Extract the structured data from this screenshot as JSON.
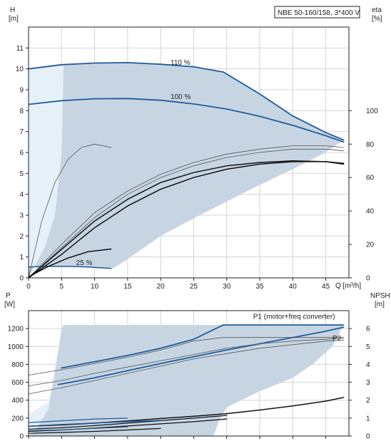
{
  "colors": {
    "region_fill": "#c7d5e3",
    "region_light": "#e6f0f9",
    "accent_curve": "#1f5b9e",
    "curve_dark": "#111111",
    "curve_gray": "#555555",
    "grid": "#d4d4d4"
  },
  "chart_data": [
    {
      "type": "line",
      "title": "NBE 50-160/158, 3*400 V",
      "ylabel_left": "H\n[m]",
      "ylabel_right": "eta\n[%]",
      "xlabel": "Q [m³/h]",
      "xlim": [
        0,
        48.5
      ],
      "ylim": [
        0,
        12
      ],
      "y2lim": [
        0,
        150
      ],
      "x_ticks": [
        0,
        5,
        10,
        15,
        20,
        25,
        30,
        35,
        40,
        45
      ],
      "y_ticks": [
        0,
        1,
        2,
        3,
        4,
        5,
        6,
        7,
        8,
        9,
        10,
        11
      ],
      "y2_ticks": [
        0,
        20,
        40,
        60,
        80,
        100
      ],
      "grid": true,
      "region_light": [
        [
          0,
          0
        ],
        [
          0,
          10.0
        ],
        [
          5.3,
          10.22
        ],
        [
          5.0,
          6.0
        ],
        [
          4.0,
          3.0
        ],
        [
          2.5,
          1.5
        ],
        [
          1.0,
          0.6
        ]
      ],
      "region_main": [
        [
          0,
          0
        ],
        [
          1.0,
          0.6
        ],
        [
          2.5,
          1.5
        ],
        [
          4.0,
          3.0
        ],
        [
          5.0,
          6.0
        ],
        [
          5.3,
          10.22
        ],
        [
          10,
          10.28
        ],
        [
          15,
          10.3
        ],
        [
          20,
          10.22
        ],
        [
          25,
          10.1
        ],
        [
          29.5,
          9.85
        ],
        [
          35,
          8.8
        ],
        [
          40,
          7.75
        ],
        [
          45,
          6.95
        ],
        [
          47.7,
          6.6
        ],
        [
          45,
          6.0
        ],
        [
          40,
          5.2
        ],
        [
          35,
          4.45
        ],
        [
          30,
          3.65
        ],
        [
          25,
          2.85
        ],
        [
          20,
          2.0
        ],
        [
          15,
          0.9
        ],
        [
          12.8,
          0.45
        ],
        [
          5,
          0.55
        ],
        [
          0,
          0.5
        ]
      ],
      "series": [
        {
          "name": "110 %",
          "axis": "left",
          "color": "accent",
          "width": 1.8,
          "x": [
            0,
            5,
            10,
            15,
            20,
            25,
            29.5,
            35,
            40,
            45,
            47.7
          ],
          "y": [
            10.0,
            10.2,
            10.28,
            10.3,
            10.22,
            10.1,
            9.85,
            8.8,
            7.75,
            6.95,
            6.6
          ]
        },
        {
          "name": "100 %",
          "axis": "left",
          "color": "accent",
          "width": 1.8,
          "x": [
            0,
            5,
            10,
            15,
            20,
            25,
            30,
            35,
            40,
            45,
            47.7
          ],
          "y": [
            8.3,
            8.48,
            8.57,
            8.58,
            8.5,
            8.32,
            8.08,
            7.73,
            7.3,
            6.8,
            6.5
          ]
        },
        {
          "name": "25 %",
          "axis": "left",
          "color": "accent",
          "width": 1.5,
          "x": [
            0,
            3,
            6,
            9,
            12.5
          ],
          "y": [
            0.52,
            0.55,
            0.55,
            0.52,
            0.45
          ]
        },
        {
          "axis": "left",
          "color": "dark",
          "width": 1.5,
          "x": [
            0,
            3,
            6,
            9,
            12.5
          ],
          "y": [
            0.05,
            0.55,
            0.95,
            1.25,
            1.38
          ]
        },
        {
          "axis": "right",
          "color": "gray",
          "width": 0.8,
          "x": [
            0,
            2,
            4,
            6,
            8,
            10,
            12.5
          ],
          "y": [
            0,
            34,
            57,
            71,
            78,
            80,
            78
          ]
        },
        {
          "axis": "right",
          "color": "gray",
          "width": 0.8,
          "x": [
            0,
            5,
            10,
            15,
            20,
            25,
            30,
            35,
            40,
            45,
            47.7
          ],
          "y": [
            0,
            20,
            39,
            52,
            62,
            69,
            74,
            77,
            79,
            79,
            78
          ]
        },
        {
          "axis": "right",
          "color": "gray",
          "width": 0.8,
          "x": [
            0,
            5,
            10,
            15,
            20,
            25,
            30,
            35,
            40,
            45,
            47.7
          ],
          "y": [
            0,
            18,
            36,
            50,
            60,
            67,
            72,
            75,
            77,
            77,
            76
          ]
        },
        {
          "axis": "right",
          "color": "dark",
          "width": 1.5,
          "x": [
            0,
            5,
            10,
            15,
            20,
            25,
            30,
            35,
            40,
            45,
            47.7
          ],
          "y": [
            0,
            17,
            34,
            47,
            57,
            63,
            67,
            69,
            70,
            69.5,
            68.5
          ]
        },
        {
          "axis": "right",
          "color": "dark",
          "width": 1.5,
          "x": [
            0,
            5,
            10,
            15,
            20,
            25,
            30,
            35,
            40,
            45,
            47.7
          ],
          "y": [
            0,
            14,
            30,
            43,
            53,
            60,
            65,
            68,
            69.5,
            69.5,
            68
          ]
        }
      ],
      "annotations": [
        {
          "text": "110 %",
          "x": 21.5,
          "y": 10.2
        },
        {
          "text": "100 %",
          "x": 21.5,
          "y": 8.55
        },
        {
          "text": "25 %",
          "x": 7.2,
          "y": 0.62
        }
      ]
    },
    {
      "type": "line",
      "ylabel_left": "P\n[W]",
      "ylabel_right": "NPSH\n[m]",
      "xlim": [
        0,
        48.5
      ],
      "ylim": [
        0,
        1400
      ],
      "y2lim": [
        0,
        7
      ],
      "y_ticks": [
        0,
        200,
        400,
        600,
        800,
        1000,
        1200
      ],
      "y2_ticks": [
        0,
        1,
        2,
        3,
        4,
        5,
        6
      ],
      "grid": true,
      "region_light": [
        [
          0,
          0
        ],
        [
          0,
          250
        ],
        [
          3,
          380
        ],
        [
          5,
          1190
        ],
        [
          4,
          700
        ],
        [
          3,
          300
        ],
        [
          1,
          60
        ]
      ],
      "region_main": [
        [
          0,
          0
        ],
        [
          1,
          60
        ],
        [
          3,
          300
        ],
        [
          4,
          700
        ],
        [
          5,
          1190
        ],
        [
          5.3,
          1240
        ],
        [
          29.5,
          1240
        ],
        [
          47.7,
          1240
        ],
        [
          46,
          1000
        ],
        [
          43,
          800
        ],
        [
          40,
          650
        ],
        [
          35,
          500
        ],
        [
          30,
          320
        ],
        [
          29,
          200
        ],
        [
          28,
          0
        ]
      ],
      "series": [
        {
          "name": "P1 (motor+freq converter)",
          "axis": "left",
          "color": "accent",
          "width": 1.8,
          "x": [
            5,
            10,
            15,
            20,
            25,
            29.5,
            35,
            40,
            45,
            47.7
          ],
          "y": [
            760,
            830,
            900,
            980,
            1080,
            1240,
            1240,
            1240,
            1240,
            1240
          ]
        },
        {
          "name": "P2",
          "axis": "left",
          "color": "accent",
          "width": 1.8,
          "x": [
            4.5,
            10,
            15,
            20,
            25,
            30,
            35,
            40,
            45,
            47.7
          ],
          "y": [
            575,
            650,
            730,
            810,
            885,
            960,
            1030,
            1100,
            1170,
            1215
          ]
        },
        {
          "axis": "left",
          "color": "gray",
          "width": 0.8,
          "x": [
            0,
            5,
            10,
            15,
            20,
            25,
            29.5,
            35,
            40,
            47.7
          ],
          "y": [
            680,
            740,
            810,
            880,
            960,
            1060,
            1100,
            1100,
            1100,
            1100
          ]
        },
        {
          "axis": "left",
          "color": "gray",
          "width": 0.8,
          "x": [
            0,
            5,
            10,
            15,
            20,
            25,
            30,
            35,
            40,
            45,
            47.7
          ],
          "y": [
            560,
            620,
            700,
            770,
            840,
            910,
            980,
            1030,
            1060,
            1080,
            1090
          ]
        },
        {
          "axis": "left",
          "color": "gray",
          "width": 0.8,
          "x": [
            0,
            5,
            10,
            15,
            20,
            25,
            30,
            35,
            40,
            45,
            47.7
          ],
          "y": [
            470,
            540,
            620,
            700,
            780,
            860,
            920,
            980,
            1020,
            1060,
            1070
          ]
        },
        {
          "axis": "right",
          "color": "dark",
          "width": 1.5,
          "x": [
            0,
            5,
            10,
            15,
            20,
            25,
            30,
            35,
            40,
            45,
            47.7
          ],
          "y": [
            0.55,
            0.62,
            0.72,
            0.84,
            0.98,
            1.1,
            1.25,
            1.45,
            1.68,
            1.95,
            2.15
          ]
        },
        {
          "axis": "right",
          "color": "dark",
          "width": 1.2,
          "x": [
            0,
            5,
            10,
            15,
            20,
            25,
            30
          ],
          "y": [
            0.38,
            0.46,
            0.58,
            0.72,
            0.86,
            1.0,
            1.15
          ]
        },
        {
          "axis": "right",
          "color": "dark",
          "width": 1.2,
          "x": [
            0,
            5,
            10,
            15,
            20,
            25,
            30
          ],
          "y": [
            0.26,
            0.34,
            0.44,
            0.56,
            0.68,
            0.8,
            0.95
          ]
        },
        {
          "axis": "right",
          "color": "dark",
          "width": 1.2,
          "x": [
            0,
            5,
            10,
            15,
            20
          ],
          "y": [
            0.15,
            0.2,
            0.26,
            0.34,
            0.42
          ]
        },
        {
          "axis": "left",
          "color": "accent",
          "width": 1.2,
          "x": [
            0,
            5,
            10,
            15
          ],
          "y": [
            150,
            170,
            190,
            200
          ]
        },
        {
          "axis": "left",
          "color": "accent",
          "width": 1.2,
          "x": [
            0,
            5,
            10,
            15,
            20
          ],
          "y": [
            110,
            130,
            145,
            160,
            175
          ]
        },
        {
          "axis": "left",
          "color": "accent",
          "width": 1.0,
          "x": [
            0,
            5,
            10,
            15
          ],
          "y": [
            60,
            70,
            85,
            100
          ]
        }
      ],
      "annotations": [
        {
          "text": "P1 (motor+freq converter)",
          "x": 34,
          "y": 1310
        },
        {
          "text": "P2",
          "x": 46,
          "y": 1065
        }
      ]
    }
  ],
  "top_chart": {
    "title": "NBE 50-160/158, 3*400 V",
    "y_title_1": "H",
    "y_title_2": "[m]",
    "y2_title_1": "eta",
    "y2_title_2": "[%]",
    "x_title": "Q [m³/h]"
  },
  "bottom_chart": {
    "y_title_1": "P",
    "y_title_2": "[W]",
    "y2_title_1": "NPSH",
    "y2_title_2": "[m]"
  }
}
